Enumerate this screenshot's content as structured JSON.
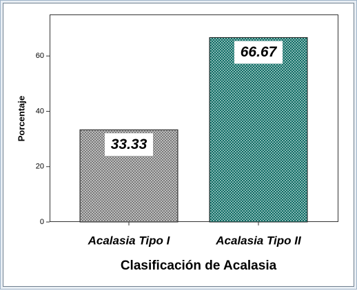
{
  "chart_data": {
    "type": "bar",
    "x_label": "Clasificación de Acalasia",
    "y_label": "Porcentaje",
    "categories": [
      "Acalasia Tipo I",
      "Acalasia Tipo II"
    ],
    "values": [
      33.33,
      66.67
    ],
    "colors": [
      "#7a7a7a",
      "#0b6b63"
    ],
    "ylim": [
      0,
      75
    ],
    "yticks": [
      0,
      20,
      40,
      60
    ]
  }
}
